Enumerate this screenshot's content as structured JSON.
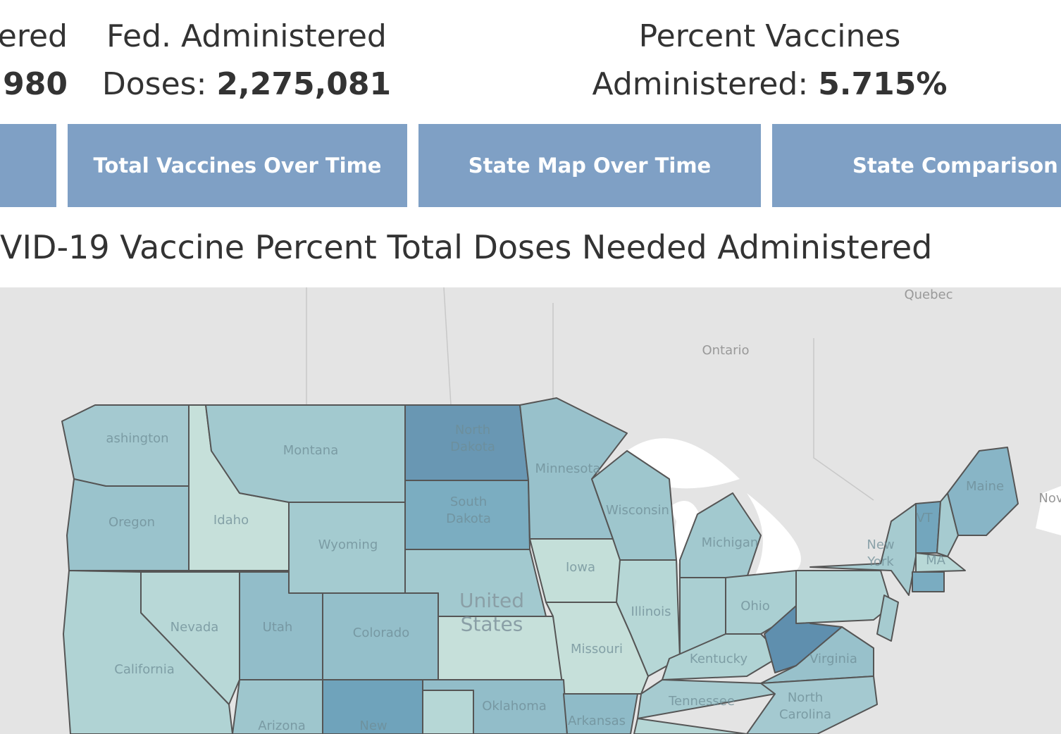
{
  "header": {
    "left_stat": {
      "label": "ered",
      "value": "980"
    },
    "fed_administered": {
      "label_line1": "Fed. Administered",
      "label_line2": "Doses:",
      "value": "2,275,081"
    },
    "percent_vaccines": {
      "label_line1": "Percent Vaccines",
      "label_line2": "Administered:",
      "value": "5.715%"
    }
  },
  "tabs": [
    "Total Vaccines Over Time",
    "State Map Over Time",
    "State Comparison"
  ],
  "map": {
    "title": "VID-19 Vaccine Percent Total Doses Needed Administered",
    "region_labels": [
      "Quebec",
      "Ontario",
      "Nov",
      "United States"
    ],
    "state_labels": [
      "ashington",
      "Oregon",
      "Idaho",
      "Montana",
      "North Dakota",
      "South Dakota",
      "Wyoming",
      "Minnesota",
      "Iowa",
      "Wisconsin",
      "Illinois",
      "Michigan",
      "Ohio",
      "Kentucky",
      "Virginia",
      "New York",
      "VT",
      "MA",
      "Maine",
      "Nevada",
      "Utah",
      "Colorado",
      "California",
      "Missouri",
      "Tennessee",
      "North Carolina",
      "Arizona",
      "New Mexico",
      "Oklahoma",
      "Arkansas"
    ]
  }
}
